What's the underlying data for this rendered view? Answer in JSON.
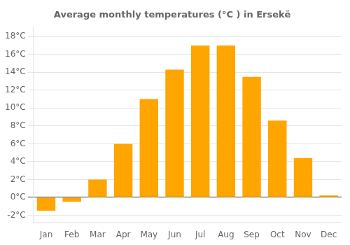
{
  "chart_data": {
    "type": "bar",
    "title": "Average monthly temperatures (°C ) in Ersekë",
    "categories": [
      "Jan",
      "Feb",
      "Mar",
      "Apr",
      "May",
      "Jun",
      "Jul",
      "Aug",
      "Sep",
      "Oct",
      "Nov",
      "Dec"
    ],
    "values": [
      -1.5,
      -0.5,
      2.0,
      6.0,
      11.0,
      14.3,
      17.0,
      17.0,
      13.5,
      8.6,
      4.4,
      0.2
    ],
    "color": "#FFA500",
    "ylim": [
      -2.8,
      19.0
    ],
    "yticks": [
      {
        "value": -2,
        "label": "-2°C"
      },
      {
        "value": 0,
        "label": "0°C"
      },
      {
        "value": 2,
        "label": "2°C"
      },
      {
        "value": 4,
        "label": "4°C"
      },
      {
        "value": 6,
        "label": "6°C"
      },
      {
        "value": 8,
        "label": "8°C"
      },
      {
        "value": 10,
        "label": "10°C"
      },
      {
        "value": 12,
        "label": "12°C"
      },
      {
        "value": 14,
        "label": "14°C"
      },
      {
        "value": 16,
        "label": "16°C"
      },
      {
        "value": 18,
        "label": "18°C"
      }
    ],
    "grid": true
  }
}
